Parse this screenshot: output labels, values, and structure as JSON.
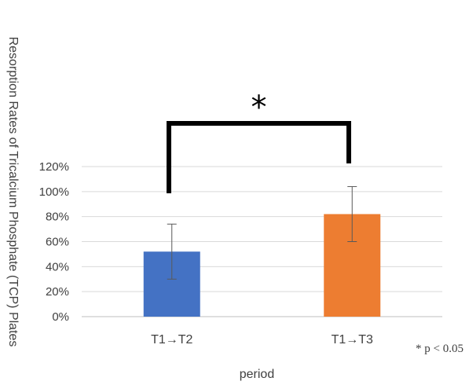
{
  "chart_data": {
    "type": "bar",
    "categories": [
      "T1→T2",
      "T1→T3"
    ],
    "values": [
      52,
      82
    ],
    "error": [
      22,
      22
    ],
    "colors": [
      "#4472C4",
      "#ED7D31"
    ],
    "ylim": [
      0,
      120
    ],
    "yticks": [
      "0%",
      "20%",
      "40%",
      "60%",
      "80%",
      "100%",
      "120%"
    ],
    "xlabel": "period",
    "ylabel": "Resorption Rates of Tricalcium Phosphate (TCP) Plates",
    "grid": true,
    "significance_marker": "*",
    "significance_note": "* p < 0.05"
  }
}
